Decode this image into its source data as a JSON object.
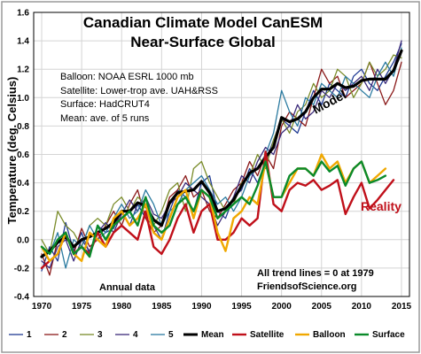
{
  "chart_data": {
    "type": "line",
    "title": "Canadian Climate Model CanESM",
    "subtitle": "Near-Surface Global",
    "ylabel": "Temperature (deg. Celsius)",
    "xlabel": "",
    "xlim": [
      1969,
      2016
    ],
    "ylim": [
      -0.4,
      1.6
    ],
    "xticks": [
      1970,
      1975,
      1980,
      1985,
      1990,
      1995,
      2000,
      2005,
      2010,
      2015
    ],
    "yticks": [
      "-0.4",
      "-0.2",
      "0.0",
      "0.2",
      "0.4",
      "0.6",
      "0.8",
      "1.0",
      "1.2",
      "1.4",
      "1.6"
    ],
    "grid": true,
    "legend_position": "bottom",
    "notes": [
      "Balloon: NOAA ESRL 1000 mb",
      "Satellite: Lower-trop ave. UAH&RSS",
      "Surface: HadCRUT4",
      "Mean: ave. of 5 runs"
    ],
    "annotations": {
      "model": "Model",
      "reality": "Reality",
      "annual": "Annual data",
      "trend": "All trend lines = 0 at 1979",
      "source": "FriendsofScience.org"
    },
    "x_start": 1970,
    "series": [
      {
        "name": "1",
        "color": "#1f3a93",
        "width": 1.3,
        "values": [
          -0.22,
          -0.05,
          -0.15,
          0.12,
          -0.08,
          0.05,
          -0.1,
          0.1,
          0.05,
          0.08,
          0.2,
          0.1,
          0.25,
          0.15,
          0.1,
          0.0,
          0.2,
          0.35,
          0.3,
          0.2,
          0.4,
          0.45,
          0.2,
          0.15,
          0.3,
          0.35,
          0.5,
          0.4,
          0.55,
          0.7,
          0.85,
          0.8,
          0.75,
          0.9,
          1.05,
          0.95,
          1.1,
          1.05,
          1.0,
          1.15,
          1.2,
          1.1,
          1.05,
          1.15,
          1.25,
          1.38
        ]
      },
      {
        "name": "2",
        "color": "#8b1a1a",
        "width": 1.3,
        "values": [
          -0.1,
          -0.25,
          0.0,
          0.05,
          -0.1,
          0.08,
          -0.05,
          0.0,
          0.1,
          0.2,
          0.1,
          0.25,
          0.35,
          0.15,
          0.05,
          0.1,
          0.3,
          0.35,
          0.45,
          0.3,
          0.35,
          0.2,
          0.15,
          0.25,
          0.35,
          0.4,
          0.55,
          0.45,
          0.6,
          0.5,
          0.8,
          0.9,
          0.85,
          0.8,
          1.0,
          1.2,
          1.1,
          1.15,
          1.0,
          1.05,
          1.1,
          1.25,
          1.1,
          0.95,
          1.05,
          1.25
        ]
      },
      {
        "name": "3",
        "color": "#7a8c2a",
        "width": 1.3,
        "values": [
          0.0,
          -0.1,
          0.2,
          0.1,
          0.05,
          -0.05,
          0.1,
          0.15,
          0.1,
          0.25,
          0.3,
          0.2,
          0.3,
          0.25,
          0.1,
          0.2,
          0.35,
          0.4,
          0.2,
          0.5,
          0.55,
          0.4,
          0.3,
          0.2,
          0.25,
          0.4,
          0.45,
          0.6,
          0.5,
          0.7,
          0.85,
          0.75,
          0.9,
          0.95,
          1.1,
          1.0,
          1.05,
          1.2,
          1.15,
          1.0,
          1.1,
          1.25,
          1.15,
          1.2,
          1.3,
          1.28
        ]
      },
      {
        "name": "4",
        "color": "#3b2a7a",
        "width": 1.3,
        "values": [
          -0.15,
          -0.2,
          -0.05,
          0.0,
          -0.15,
          0.0,
          -0.08,
          0.05,
          0.12,
          0.05,
          0.18,
          0.28,
          0.2,
          0.3,
          0.18,
          0.15,
          0.25,
          0.3,
          0.4,
          0.35,
          0.3,
          0.25,
          0.1,
          0.2,
          0.3,
          0.45,
          0.4,
          0.55,
          0.65,
          0.6,
          0.75,
          0.8,
          0.95,
          0.85,
          0.9,
          1.05,
          1.0,
          1.1,
          1.05,
          1.1,
          1.15,
          1.05,
          1.2,
          1.1,
          1.2,
          1.4
        ]
      },
      {
        "name": "5",
        "color": "#2a7aa0",
        "width": 1.3,
        "values": [
          -0.05,
          -0.1,
          0.05,
          -0.2,
          0.0,
          -0.05,
          0.1,
          0.0,
          0.05,
          0.15,
          0.25,
          0.15,
          0.2,
          0.35,
          0.25,
          0.1,
          0.2,
          0.25,
          0.35,
          0.4,
          0.45,
          0.35,
          0.25,
          0.3,
          0.2,
          0.3,
          0.45,
          0.5,
          0.6,
          0.75,
          1.05,
          0.9,
          0.8,
          1.0,
          0.95,
          1.1,
          1.05,
          1.0,
          1.15,
          1.1,
          1.05,
          1.0,
          1.15,
          1.25,
          1.15,
          1.35
        ]
      },
      {
        "name": "Mean",
        "color": "#000000",
        "width": 3.2,
        "values": [
          -0.12,
          -0.08,
          -0.02,
          0.02,
          -0.05,
          0.0,
          0.02,
          0.05,
          0.08,
          0.12,
          0.2,
          0.2,
          0.26,
          0.24,
          0.14,
          0.1,
          0.26,
          0.33,
          0.34,
          0.35,
          0.41,
          0.33,
          0.2,
          0.22,
          0.28,
          0.38,
          0.47,
          0.5,
          0.58,
          0.65,
          0.86,
          0.83,
          0.85,
          0.9,
          1.0,
          1.06,
          1.06,
          1.1,
          1.07,
          1.08,
          1.12,
          1.13,
          1.13,
          1.13,
          1.19,
          1.33
        ]
      },
      {
        "name": "Satellite",
        "color": "#c0101a",
        "width": 2.4,
        "values": [
          -0.2,
          -0.15,
          -0.1,
          0.05,
          -0.1,
          -0.05,
          -0.1,
          0.05,
          -0.05,
          0.05,
          0.1,
          0.05,
          0.0,
          0.2,
          -0.05,
          -0.1,
          0.0,
          0.15,
          0.25,
          0.05,
          0.2,
          0.25,
          0.0,
          0.0,
          0.05,
          0.15,
          0.1,
          0.15,
          0.62,
          0.25,
          0.2,
          0.35,
          0.4,
          0.38,
          0.42,
          0.35,
          0.38,
          0.42,
          0.18,
          0.3,
          0.4,
          0.22,
          0.28,
          0.35,
          0.42
        ]
      },
      {
        "name": "Balloon",
        "color": "#f0a800",
        "width": 2.4,
        "values": [
          -0.05,
          -0.15,
          -0.1,
          0.05,
          -0.1,
          -0.15,
          0.05,
          0.0,
          -0.05,
          0.15,
          0.2,
          0.1,
          0.15,
          0.25,
          0.05,
          0.0,
          0.15,
          0.3,
          0.35,
          0.15,
          0.35,
          0.3,
          0.05,
          -0.08,
          0.15,
          0.2,
          0.3,
          0.25,
          0.55,
          0.3,
          0.3,
          0.4,
          0.5,
          0.5,
          0.45,
          0.6,
          0.5,
          0.55,
          0.4,
          0.5,
          0.55,
          0.4,
          0.45,
          0.5
        ]
      },
      {
        "name": "Surface",
        "color": "#0a8a2a",
        "width": 2.4,
        "values": [
          -0.05,
          -0.1,
          0.0,
          0.05,
          -0.1,
          -0.05,
          -0.12,
          0.1,
          0.0,
          0.1,
          0.15,
          0.2,
          0.1,
          0.3,
          0.1,
          0.05,
          0.1,
          0.25,
          0.3,
          0.2,
          0.35,
          0.3,
          0.15,
          0.2,
          0.25,
          0.3,
          0.25,
          0.38,
          0.55,
          0.3,
          0.3,
          0.45,
          0.5,
          0.5,
          0.45,
          0.55,
          0.48,
          0.52,
          0.38,
          0.5,
          0.55,
          0.4,
          0.42,
          0.45
        ]
      }
    ]
  }
}
